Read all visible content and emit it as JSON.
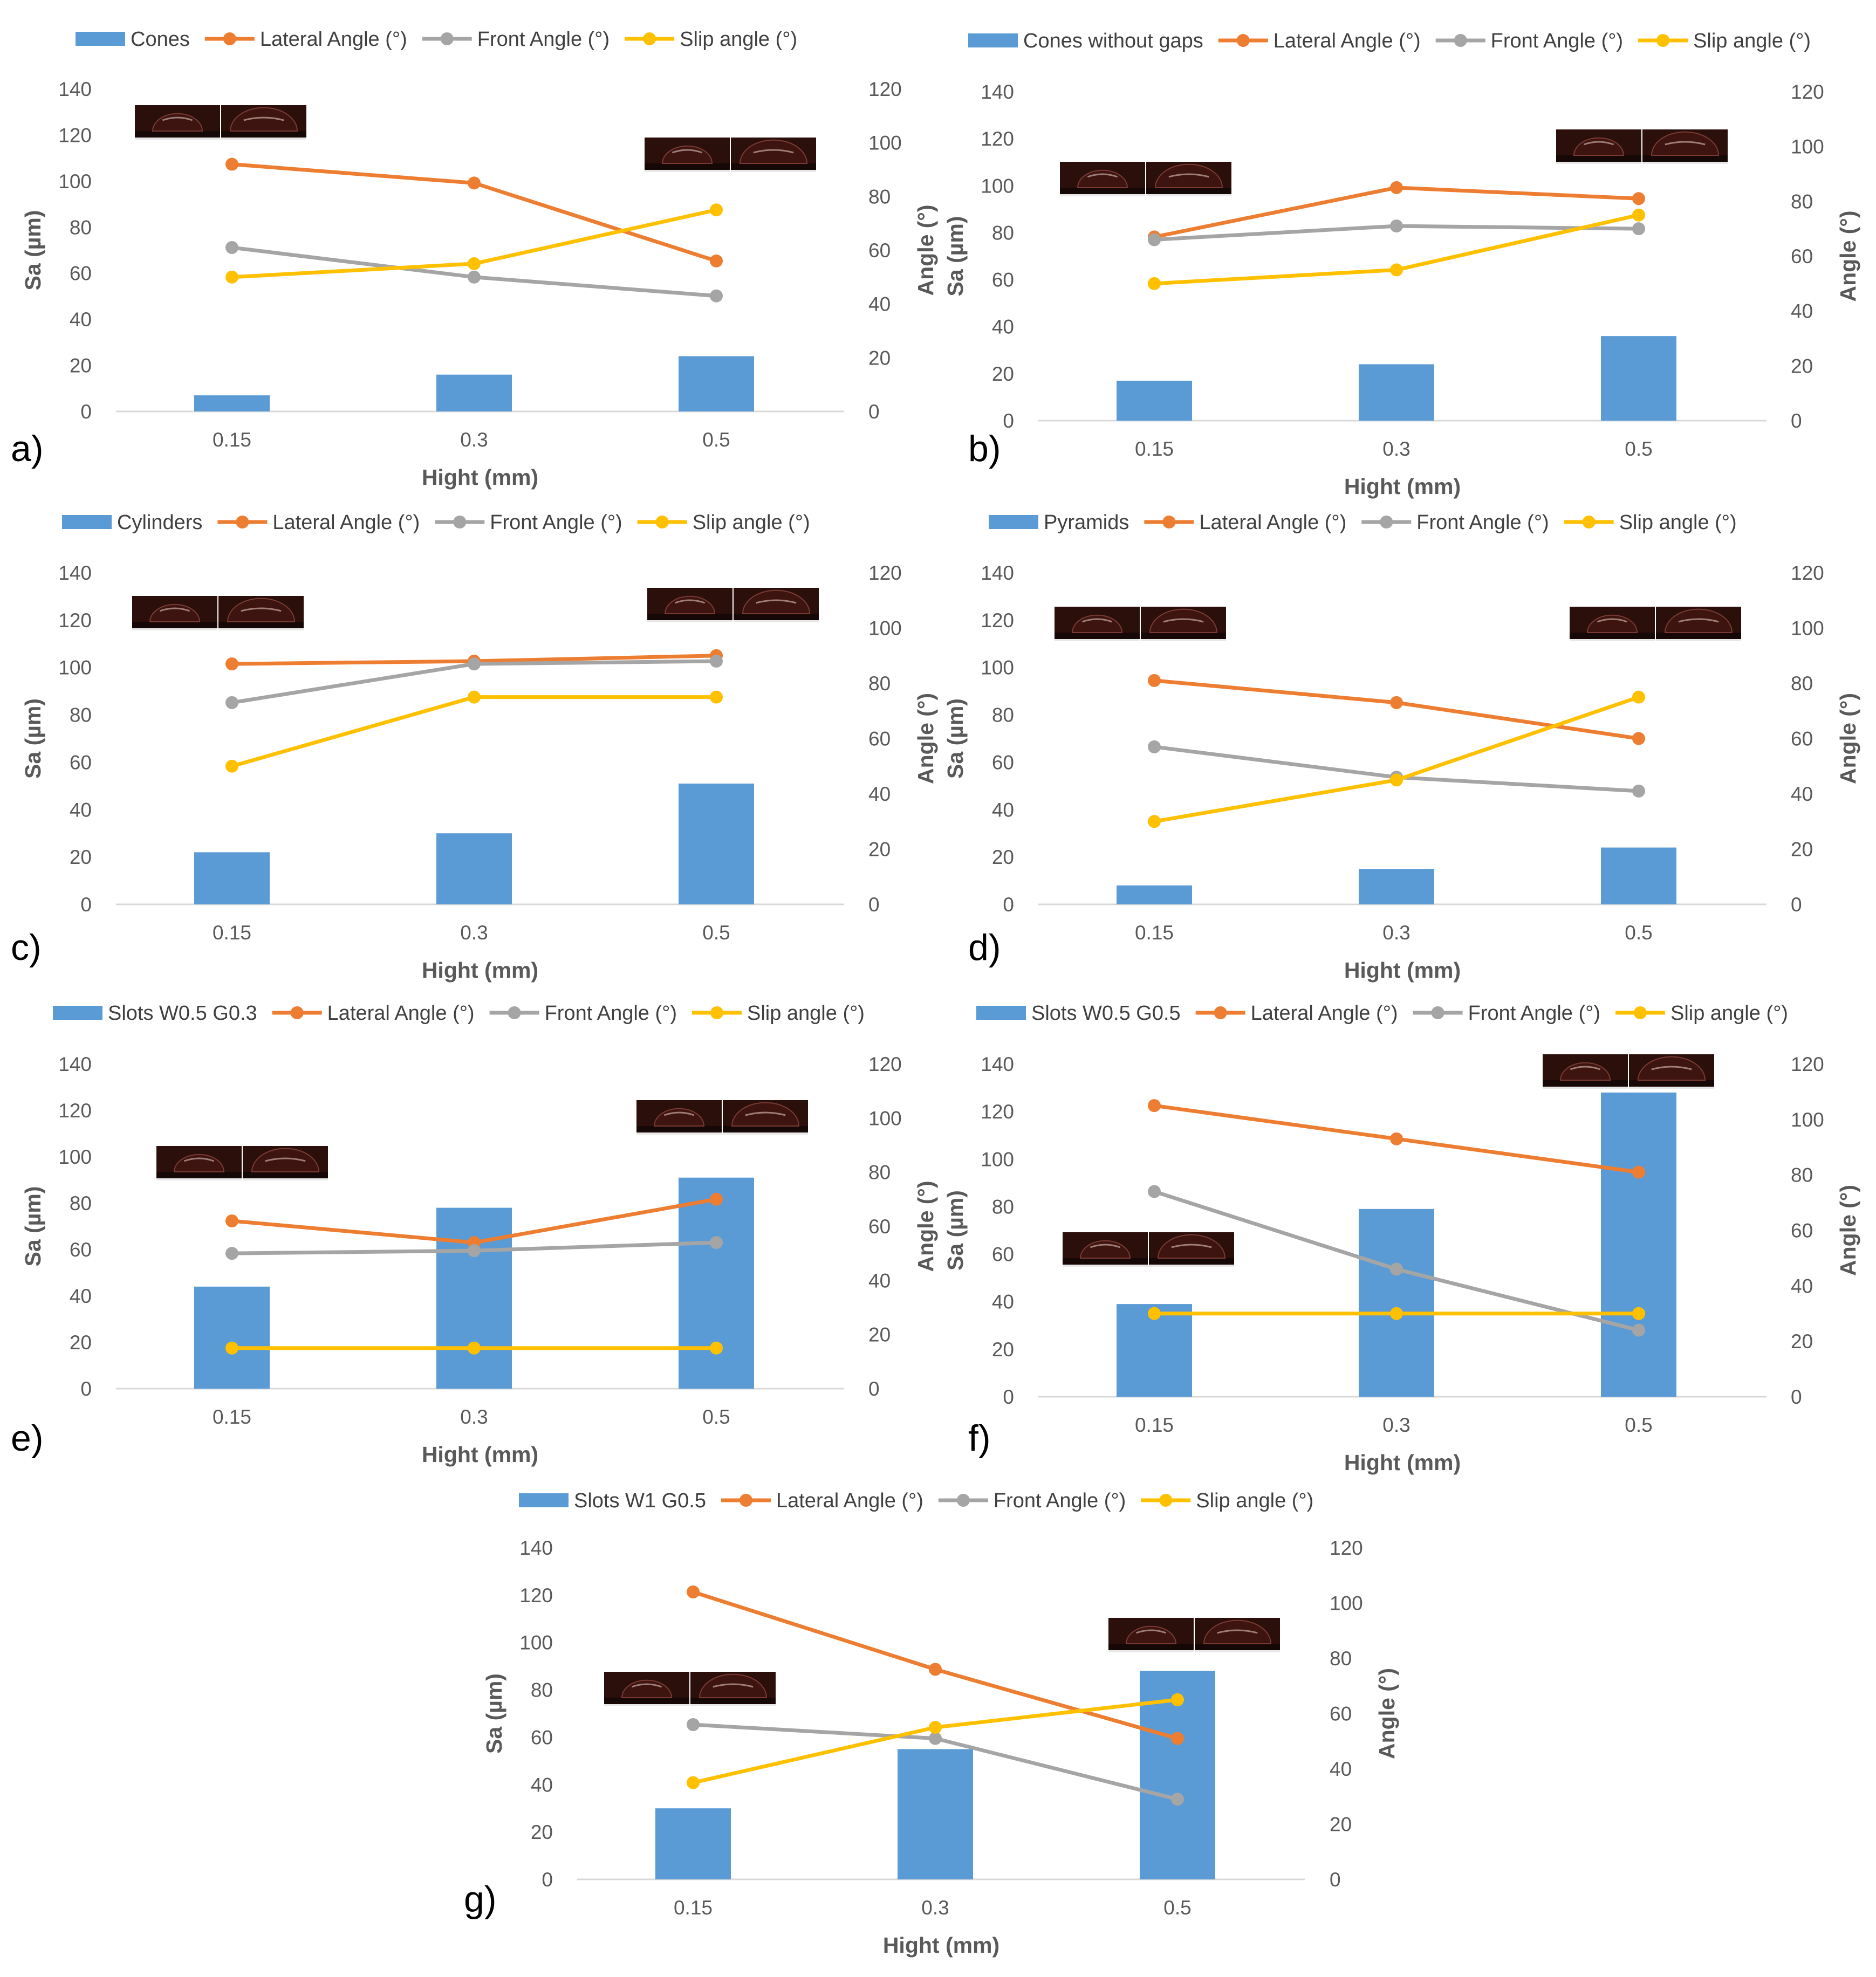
{
  "figure": {
    "panel_labels": [
      "a)",
      "b)",
      "c)",
      "d)",
      "e)",
      "f)",
      "g)"
    ],
    "legend_series": [
      "Lateral Angle (°)",
      "Front Angle (°)",
      "Slip angle (°)"
    ]
  },
  "chart_data": [
    {
      "type": "bar+line",
      "panel": "a)",
      "categories": [
        "0.15",
        "0.3",
        "0.5"
      ],
      "xlabel": "Hight (mm)",
      "ylabel": "Sa (µm)",
      "y2label": "Angle (°)",
      "ylim": [
        0,
        140
      ],
      "y_ticks": [
        0,
        20,
        40,
        60,
        80,
        100,
        120,
        140
      ],
      "y2lim": [
        0,
        120
      ],
      "y2_ticks": [
        0,
        20,
        40,
        60,
        80,
        100,
        120
      ],
      "bar_series": {
        "name": "Cones",
        "values": [
          7,
          16,
          24
        ],
        "color": "#5B9BD5"
      },
      "line_series": [
        {
          "name": "Lateral Angle (°)",
          "values": [
            92,
            85,
            56
          ],
          "color": "#ED7D31"
        },
        {
          "name": "Front Angle (°)",
          "values": [
            61,
            50,
            43
          ],
          "color": "#A5A5A5"
        },
        {
          "name": "Slip angle (°)",
          "values": [
            50,
            55,
            75
          ],
          "color": "#FFC000"
        }
      ],
      "droplet_images": 2,
      "legend_position": "top"
    },
    {
      "type": "bar+line",
      "panel": "b)",
      "categories": [
        "0.15",
        "0.3",
        "0.5"
      ],
      "xlabel": "Hight (mm)",
      "ylabel": "Sa (µm)",
      "y2label": "Angle (°)",
      "ylim": [
        0,
        140
      ],
      "y_ticks": [
        0,
        20,
        40,
        60,
        80,
        100,
        120,
        140
      ],
      "y2lim": [
        0,
        120
      ],
      "y2_ticks": [
        0,
        20,
        40,
        60,
        80,
        100,
        120
      ],
      "bar_series": {
        "name": "Cones without gaps",
        "values": [
          17,
          24,
          36
        ],
        "color": "#5B9BD5"
      },
      "line_series": [
        {
          "name": "Lateral Angle (°)",
          "values": [
            67,
            85,
            81
          ],
          "color": "#ED7D31"
        },
        {
          "name": "Front Angle (°)",
          "values": [
            66,
            71,
            70
          ],
          "color": "#A5A5A5"
        },
        {
          "name": "Slip angle (°)",
          "values": [
            50,
            55,
            75
          ],
          "color": "#FFC000"
        }
      ],
      "droplet_images": 2,
      "legend_position": "top"
    },
    {
      "type": "bar+line",
      "panel": "c)",
      "categories": [
        "0.15",
        "0.3",
        "0.5"
      ],
      "xlabel": "Hight (mm)",
      "ylabel": "Sa (µm)",
      "y2label": "Angle (°)",
      "ylim": [
        0,
        140
      ],
      "y_ticks": [
        0,
        20,
        40,
        60,
        80,
        100,
        120,
        140
      ],
      "y2lim": [
        0,
        120
      ],
      "y2_ticks": [
        0,
        20,
        40,
        60,
        80,
        100,
        120
      ],
      "bar_series": {
        "name": "Cylinders",
        "values": [
          22,
          30,
          51
        ],
        "color": "#5B9BD5"
      },
      "line_series": [
        {
          "name": "Lateral Angle (°)",
          "values": [
            87,
            88,
            90
          ],
          "color": "#ED7D31"
        },
        {
          "name": "Front Angle (°)",
          "values": [
            73,
            87,
            88
          ],
          "color": "#A5A5A5"
        },
        {
          "name": "Slip angle (°)",
          "values": [
            50,
            75,
            75
          ],
          "color": "#FFC000"
        }
      ],
      "droplet_images": 2,
      "legend_position": "top"
    },
    {
      "type": "bar+line",
      "panel": "d)",
      "categories": [
        "0.15",
        "0.3",
        "0.5"
      ],
      "xlabel": "Hight (mm)",
      "ylabel": "Sa (µm)",
      "y2label": "Angle (°)",
      "ylim": [
        0,
        140
      ],
      "y_ticks": [
        0,
        20,
        40,
        60,
        80,
        100,
        120,
        140
      ],
      "y2lim": [
        0,
        120
      ],
      "y2_ticks": [
        0,
        20,
        40,
        60,
        80,
        100,
        120
      ],
      "bar_series": {
        "name": "Pyramids",
        "values": [
          8,
          15,
          24
        ],
        "color": "#5B9BD5"
      },
      "line_series": [
        {
          "name": "Lateral Angle (°)",
          "values": [
            81,
            73,
            60
          ],
          "color": "#ED7D31"
        },
        {
          "name": "Front Angle (°)",
          "values": [
            57,
            46,
            41
          ],
          "color": "#A5A5A5"
        },
        {
          "name": "Slip angle (°)",
          "values": [
            30,
            45,
            75
          ],
          "color": "#FFC000"
        }
      ],
      "droplet_images": 2,
      "legend_position": "top"
    },
    {
      "type": "bar+line",
      "panel": "e)",
      "categories": [
        "0.15",
        "0.3",
        "0.5"
      ],
      "xlabel": "Hight (mm)",
      "ylabel": "Sa (µm)",
      "y2label": "Angle (°)",
      "ylim": [
        0,
        140
      ],
      "y_ticks": [
        0,
        20,
        40,
        60,
        80,
        100,
        120,
        140
      ],
      "y2lim": [
        0,
        120
      ],
      "y2_ticks": [
        0,
        20,
        40,
        60,
        80,
        100,
        120
      ],
      "bar_series": {
        "name": "Slots W0.5 G0.3",
        "values": [
          44,
          78,
          91
        ],
        "color": "#5B9BD5"
      },
      "line_series": [
        {
          "name": "Lateral Angle (°)",
          "values": [
            62,
            54,
            70
          ],
          "color": "#ED7D31"
        },
        {
          "name": "Front Angle (°)",
          "values": [
            50,
            51,
            54
          ],
          "color": "#A5A5A5"
        },
        {
          "name": "Slip angle (°)",
          "values": [
            15,
            15,
            15
          ],
          "color": "#FFC000"
        }
      ],
      "droplet_images": 2,
      "legend_position": "top"
    },
    {
      "type": "bar+line",
      "panel": "f)",
      "categories": [
        "0.15",
        "0.3",
        "0.5"
      ],
      "xlabel": "Hight (mm)",
      "ylabel": "Sa (µm)",
      "y2label": "Angle (°)",
      "ylim": [
        0,
        140
      ],
      "y_ticks": [
        0,
        20,
        40,
        60,
        80,
        100,
        120,
        140
      ],
      "y2lim": [
        0,
        120
      ],
      "y2_ticks": [
        0,
        20,
        40,
        60,
        80,
        100,
        120
      ],
      "bar_series": {
        "name": "Slots W0.5 G0.5",
        "values": [
          39,
          79,
          128
        ],
        "color": "#5B9BD5"
      },
      "line_series": [
        {
          "name": "Lateral Angle (°)",
          "values": [
            105,
            93,
            81
          ],
          "color": "#ED7D31"
        },
        {
          "name": "Front Angle (°)",
          "values": [
            74,
            46,
            24
          ],
          "color": "#A5A5A5"
        },
        {
          "name": "Slip angle (°)",
          "values": [
            30,
            30,
            30
          ],
          "color": "#FFC000"
        }
      ],
      "droplet_images": 2,
      "legend_position": "top"
    },
    {
      "type": "bar+line",
      "panel": "g)",
      "categories": [
        "0.15",
        "0.3",
        "0.5"
      ],
      "xlabel": "Hight (mm)",
      "ylabel": "Sa (µm)",
      "y2label": "Angle (°)",
      "ylim": [
        0,
        140
      ],
      "y_ticks": [
        0,
        20,
        40,
        60,
        80,
        100,
        120,
        140
      ],
      "y2lim": [
        0,
        120
      ],
      "y2_ticks": [
        0,
        20,
        40,
        60,
        80,
        100,
        120
      ],
      "bar_series": {
        "name": "Slots W1 G0.5",
        "values": [
          30,
          55,
          88
        ],
        "color": "#5B9BD5"
      },
      "line_series": [
        {
          "name": "Lateral Angle (°)",
          "values": [
            104,
            76,
            51
          ],
          "color": "#ED7D31"
        },
        {
          "name": "Front Angle (°)",
          "values": [
            56,
            51,
            29
          ],
          "color": "#A5A5A5"
        },
        {
          "name": "Slip angle (°)",
          "values": [
            35,
            55,
            65
          ],
          "color": "#FFC000"
        }
      ],
      "droplet_images": 2,
      "legend_position": "top"
    }
  ]
}
